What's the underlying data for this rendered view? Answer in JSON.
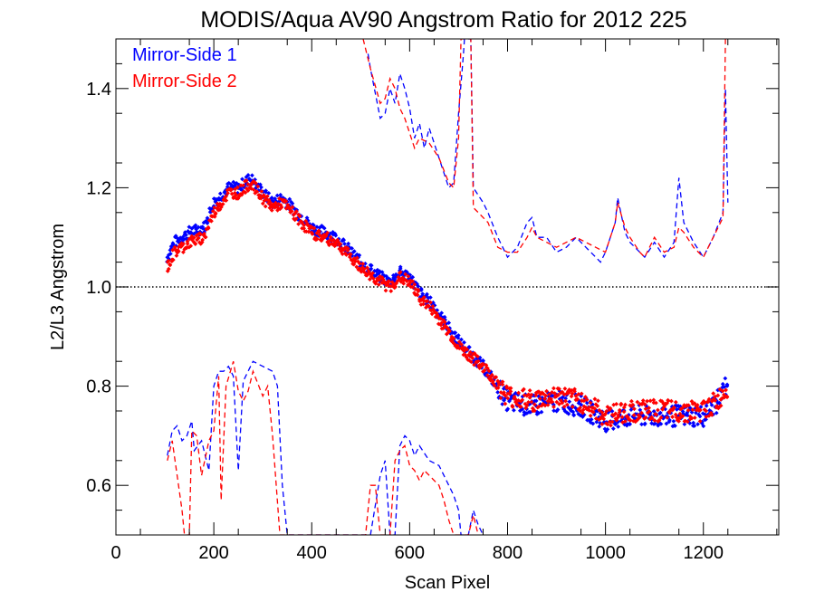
{
  "chart_data": {
    "type": "scatter",
    "title": "MODIS/Aqua AV90 Angstrom Ratio for 2012 225",
    "xlabel": "Scan Pixel",
    "ylabel": "L2/L3 Angstrom",
    "xlim": [
      0,
      1354
    ],
    "ylim": [
      0.5,
      1.5
    ],
    "x_ticks": [
      0,
      200,
      400,
      600,
      800,
      1000,
      1200
    ],
    "y_ticks": [
      0.6,
      0.8,
      1.0,
      1.2,
      1.4
    ],
    "x_tick_labels": [
      "0",
      "200",
      "400",
      "600",
      "800",
      "1000",
      "1200"
    ],
    "y_tick_labels": [
      "0.6",
      "0.8",
      "1.0",
      "1.2",
      "1.4"
    ],
    "reference_line": 1.0,
    "grid": false,
    "legend_position": "top-left",
    "series": [
      {
        "name": "Mirror-Side 1",
        "color": "#0000ff",
        "mean": [
          [
            105,
            1.06
          ],
          [
            120,
            1.09
          ],
          [
            150,
            1.11
          ],
          [
            180,
            1.12
          ],
          [
            200,
            1.17
          ],
          [
            230,
            1.2
          ],
          [
            250,
            1.2
          ],
          [
            275,
            1.22
          ],
          [
            300,
            1.19
          ],
          [
            320,
            1.17
          ],
          [
            340,
            1.18
          ],
          [
            360,
            1.16
          ],
          [
            400,
            1.12
          ],
          [
            450,
            1.1
          ],
          [
            500,
            1.05
          ],
          [
            540,
            1.02
          ],
          [
            560,
            1.01
          ],
          [
            580,
            1.03
          ],
          [
            600,
            1.02
          ],
          [
            620,
            0.99
          ],
          [
            650,
            0.96
          ],
          [
            700,
            0.89
          ],
          [
            750,
            0.84
          ],
          [
            800,
            0.77
          ],
          [
            850,
            0.76
          ],
          [
            900,
            0.77
          ],
          [
            950,
            0.76
          ],
          [
            1000,
            0.73
          ],
          [
            1050,
            0.74
          ],
          [
            1100,
            0.74
          ],
          [
            1150,
            0.74
          ],
          [
            1200,
            0.74
          ],
          [
            1230,
            0.77
          ],
          [
            1250,
            0.81
          ]
        ],
        "upper": [
          [
            515,
            1.47
          ],
          [
            520,
            1.44
          ],
          [
            540,
            1.34
          ],
          [
            550,
            1.35
          ],
          [
            560,
            1.4
          ],
          [
            570,
            1.37
          ],
          [
            580,
            1.43
          ],
          [
            590,
            1.4
          ],
          [
            600,
            1.36
          ],
          [
            610,
            1.3
          ],
          [
            620,
            1.33
          ],
          [
            630,
            1.28
          ],
          [
            640,
            1.32
          ],
          [
            660,
            1.26
          ],
          [
            680,
            1.2
          ],
          [
            690,
            1.21
          ],
          [
            700,
            1.35
          ],
          [
            710,
            1.47
          ],
          [
            712,
            1.5
          ],
          [
            725,
            1.5
          ],
          [
            730,
            1.2
          ],
          [
            750,
            1.17
          ],
          [
            760,
            1.15
          ],
          [
            780,
            1.1
          ],
          [
            800,
            1.06
          ],
          [
            820,
            1.08
          ],
          [
            840,
            1.13
          ],
          [
            850,
            1.14
          ],
          [
            860,
            1.1
          ],
          [
            880,
            1.1
          ],
          [
            900,
            1.07
          ],
          [
            920,
            1.08
          ],
          [
            940,
            1.1
          ],
          [
            960,
            1.08
          ],
          [
            980,
            1.06
          ],
          [
            990,
            1.05
          ],
          [
            1000,
            1.07
          ],
          [
            1010,
            1.1
          ],
          [
            1020,
            1.13
          ],
          [
            1025,
            1.18
          ],
          [
            1040,
            1.11
          ],
          [
            1050,
            1.09
          ],
          [
            1070,
            1.07
          ],
          [
            1080,
            1.06
          ],
          [
            1100,
            1.09
          ],
          [
            1120,
            1.06
          ],
          [
            1140,
            1.09
          ],
          [
            1150,
            1.22
          ],
          [
            1160,
            1.13
          ],
          [
            1180,
            1.09
          ],
          [
            1200,
            1.06
          ],
          [
            1220,
            1.1
          ],
          [
            1240,
            1.15
          ],
          [
            1245,
            1.4
          ],
          [
            1250,
            1.17
          ]
        ],
        "lower": [
          [
            105,
            0.66
          ],
          [
            115,
            0.71
          ],
          [
            125,
            0.72
          ],
          [
            135,
            0.69
          ],
          [
            145,
            0.7
          ],
          [
            155,
            0.73
          ],
          [
            160,
            0.67
          ],
          [
            175,
            0.69
          ],
          [
            190,
            0.63
          ],
          [
            200,
            0.8
          ],
          [
            210,
            0.83
          ],
          [
            220,
            0.83
          ],
          [
            230,
            0.84
          ],
          [
            240,
            0.82
          ],
          [
            250,
            0.63
          ],
          [
            260,
            0.81
          ],
          [
            280,
            0.85
          ],
          [
            300,
            0.84
          ],
          [
            320,
            0.83
          ],
          [
            330,
            0.8
          ],
          [
            340,
            0.6
          ],
          [
            350,
            0.5
          ],
          [
            520,
            0.5
          ],
          [
            540,
            0.62
          ],
          [
            550,
            0.65
          ],
          [
            560,
            0.5
          ],
          [
            570,
            0.5
          ],
          [
            580,
            0.68
          ],
          [
            590,
            0.7
          ],
          [
            600,
            0.69
          ],
          [
            610,
            0.66
          ],
          [
            620,
            0.68
          ],
          [
            640,
            0.65
          ],
          [
            660,
            0.64
          ],
          [
            670,
            0.62
          ],
          [
            680,
            0.6
          ],
          [
            690,
            0.58
          ],
          [
            700,
            0.55
          ],
          [
            705,
            0.5
          ],
          [
            720,
            0.5
          ],
          [
            730,
            0.55
          ],
          [
            740,
            0.52
          ],
          [
            750,
            0.5
          ]
        ]
      },
      {
        "name": "Mirror-Side 2",
        "color": "#ff0000",
        "mean": [
          [
            105,
            1.04
          ],
          [
            120,
            1.07
          ],
          [
            150,
            1.09
          ],
          [
            180,
            1.1
          ],
          [
            200,
            1.15
          ],
          [
            230,
            1.19
          ],
          [
            250,
            1.19
          ],
          [
            275,
            1.21
          ],
          [
            300,
            1.18
          ],
          [
            320,
            1.16
          ],
          [
            340,
            1.17
          ],
          [
            360,
            1.15
          ],
          [
            400,
            1.11
          ],
          [
            450,
            1.09
          ],
          [
            500,
            1.04
          ],
          [
            540,
            1.01
          ],
          [
            560,
            1.0
          ],
          [
            580,
            1.02
          ],
          [
            600,
            1.01
          ],
          [
            620,
            0.98
          ],
          [
            650,
            0.95
          ],
          [
            700,
            0.88
          ],
          [
            750,
            0.84
          ],
          [
            800,
            0.78
          ],
          [
            850,
            0.77
          ],
          [
            900,
            0.78
          ],
          [
            950,
            0.77
          ],
          [
            1000,
            0.74
          ],
          [
            1050,
            0.75
          ],
          [
            1100,
            0.75
          ],
          [
            1150,
            0.75
          ],
          [
            1200,
            0.75
          ],
          [
            1230,
            0.77
          ],
          [
            1250,
            0.8
          ]
        ],
        "upper": [
          [
            505,
            1.5
          ],
          [
            520,
            1.44
          ],
          [
            540,
            1.37
          ],
          [
            550,
            1.38
          ],
          [
            560,
            1.42
          ],
          [
            570,
            1.4
          ],
          [
            580,
            1.36
          ],
          [
            590,
            1.34
          ],
          [
            600,
            1.31
          ],
          [
            610,
            1.28
          ],
          [
            620,
            1.3
          ],
          [
            640,
            1.29
          ],
          [
            660,
            1.26
          ],
          [
            680,
            1.21
          ],
          [
            690,
            1.2
          ],
          [
            700,
            1.3
          ],
          [
            705,
            1.5
          ],
          [
            725,
            1.5
          ],
          [
            730,
            1.16
          ],
          [
            750,
            1.14
          ],
          [
            760,
            1.13
          ],
          [
            780,
            1.08
          ],
          [
            800,
            1.07
          ],
          [
            820,
            1.07
          ],
          [
            840,
            1.1
          ],
          [
            850,
            1.12
          ],
          [
            860,
            1.1
          ],
          [
            880,
            1.09
          ],
          [
            900,
            1.08
          ],
          [
            920,
            1.09
          ],
          [
            940,
            1.1
          ],
          [
            960,
            1.09
          ],
          [
            980,
            1.08
          ],
          [
            1000,
            1.07
          ],
          [
            1010,
            1.1
          ],
          [
            1020,
            1.13
          ],
          [
            1025,
            1.17
          ],
          [
            1040,
            1.12
          ],
          [
            1050,
            1.1
          ],
          [
            1070,
            1.07
          ],
          [
            1080,
            1.06
          ],
          [
            1100,
            1.1
          ],
          [
            1120,
            1.07
          ],
          [
            1140,
            1.08
          ],
          [
            1150,
            1.12
          ],
          [
            1160,
            1.11
          ],
          [
            1180,
            1.08
          ],
          [
            1200,
            1.06
          ],
          [
            1220,
            1.1
          ],
          [
            1240,
            1.14
          ],
          [
            1245,
            1.5
          ]
        ],
        "lower": [
          [
            105,
            0.65
          ],
          [
            115,
            0.69
          ],
          [
            125,
            0.62
          ],
          [
            135,
            0.55
          ],
          [
            140,
            0.5
          ],
          [
            150,
            0.5
          ],
          [
            155,
            0.71
          ],
          [
            165,
            0.7
          ],
          [
            175,
            0.62
          ],
          [
            190,
            0.69
          ],
          [
            200,
            0.71
          ],
          [
            210,
            0.82
          ],
          [
            215,
            0.57
          ],
          [
            225,
            0.8
          ],
          [
            240,
            0.85
          ],
          [
            250,
            0.79
          ],
          [
            260,
            0.77
          ],
          [
            270,
            0.79
          ],
          [
            280,
            0.83
          ],
          [
            300,
            0.78
          ],
          [
            310,
            0.8
          ],
          [
            320,
            0.7
          ],
          [
            335,
            0.5
          ],
          [
            510,
            0.5
          ],
          [
            520,
            0.6
          ],
          [
            530,
            0.6
          ],
          [
            540,
            0.5
          ],
          [
            560,
            0.5
          ],
          [
            570,
            0.65
          ],
          [
            580,
            0.67
          ],
          [
            590,
            0.68
          ],
          [
            600,
            0.64
          ],
          [
            610,
            0.63
          ],
          [
            620,
            0.61
          ],
          [
            630,
            0.63
          ],
          [
            640,
            0.62
          ],
          [
            660,
            0.6
          ],
          [
            670,
            0.57
          ],
          [
            680,
            0.53
          ],
          [
            690,
            0.5
          ],
          [
            720,
            0.5
          ],
          [
            730,
            0.54
          ],
          [
            740,
            0.5
          ]
        ]
      }
    ]
  }
}
